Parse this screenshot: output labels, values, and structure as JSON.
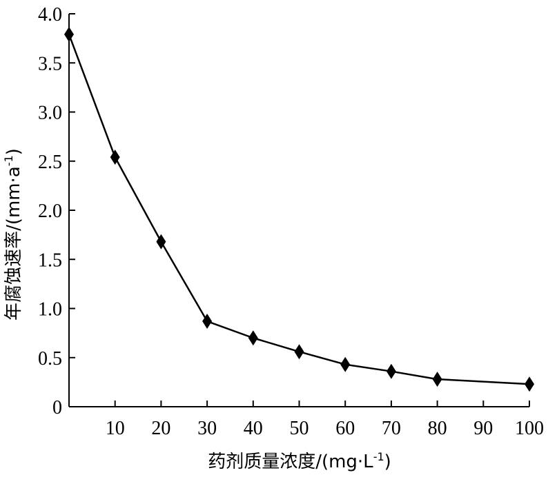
{
  "chart_data": {
    "type": "line",
    "title": "",
    "x": [
      0,
      10,
      20,
      30,
      40,
      50,
      60,
      70,
      80,
      100
    ],
    "series": [
      {
        "values": [
          3.79,
          2.54,
          1.68,
          0.87,
          0.7,
          0.56,
          0.43,
          0.36,
          0.28,
          0.23
        ]
      }
    ],
    "xlim": [
      0,
      100
    ],
    "ylim": [
      0,
      4.0
    ],
    "x_ticks": [
      10,
      20,
      30,
      40,
      50,
      60,
      70,
      80,
      90,
      100
    ],
    "x_tick_labels": [
      "10",
      "20",
      "30",
      "40",
      "50",
      "60",
      "70",
      "80",
      "90",
      "100"
    ],
    "y_ticks": [
      0,
      0.5,
      1.0,
      1.5,
      2.0,
      2.5,
      3.0,
      3.5,
      4.0
    ],
    "y_tick_labels": [
      "0",
      "0.5",
      "1.0",
      "1.5",
      "2.0",
      "2.5",
      "3.0",
      "3.5",
      "4.0"
    ],
    "xlabel": {
      "main": "药剂质量浓度/(mg·L",
      "superscript": "-1",
      "close": ")"
    },
    "ylabel": {
      "main": "年腐蚀速率/(mm·a",
      "superscript": "-1",
      "close": ")"
    },
    "marker": "diamond",
    "grid": false,
    "legend": "none",
    "colors": {
      "line": "#000000",
      "marker": "#000000",
      "axis": "#000000"
    }
  }
}
